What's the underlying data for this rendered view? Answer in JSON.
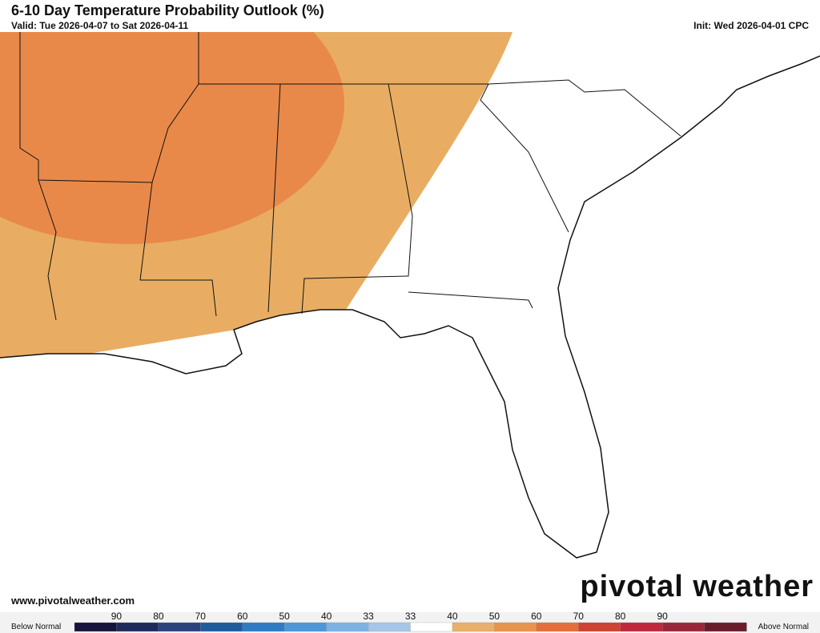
{
  "header": {
    "title": "6-10 Day Temperature Probability Outlook (%)",
    "valid": "Valid: Tue 2026-04-07 to Sat 2026-04-11",
    "init": "Init: Wed 2026-04-01 CPC"
  },
  "footer": {
    "website": "www.pivotalweather.com",
    "logo": "pivotal weather"
  },
  "legend": {
    "below": "Below Normal",
    "above": "Above Normal",
    "labels": [
      "90",
      "80",
      "70",
      "60",
      "50",
      "40",
      "33",
      "33",
      "40",
      "50",
      "60",
      "70",
      "80",
      "90"
    ],
    "colors": [
      "#14143c",
      "#1f2a5c",
      "#2a437e",
      "#1d5c9e",
      "#2e7cc4",
      "#4d97d9",
      "#7cb3e2",
      "#a7c5e6",
      "#ffffff",
      "#e8b06a",
      "#e8944c",
      "#e2703a",
      "#cc4432",
      "#bd2a3c",
      "#97283a",
      "#6a1c28"
    ]
  }
}
